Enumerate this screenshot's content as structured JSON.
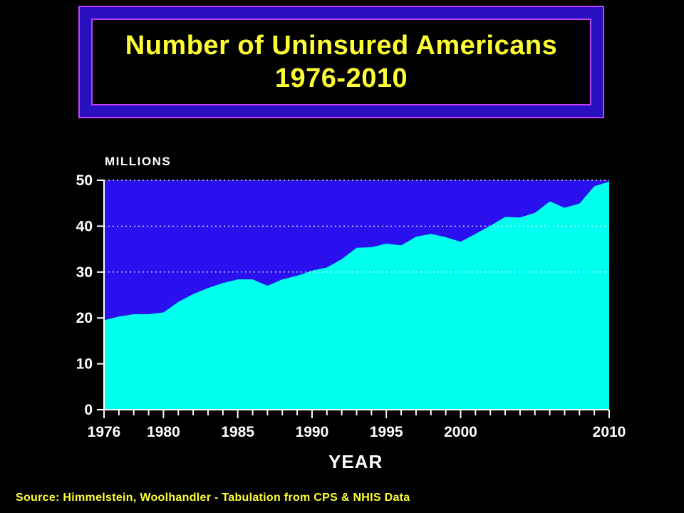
{
  "title": {
    "line1": "Number of Uninsured Americans",
    "line2": "1976-2010"
  },
  "source": "Source: Himmelstein, Woolhandler - Tabulation from CPS & NHIS Data",
  "colors": {
    "background": "#000000",
    "title_text": "#ffff33",
    "title_frame": "#2a0fc0",
    "title_border": "#c040ff",
    "plot_background": "#2a10ee",
    "area_fill": "#00ffee",
    "gridline": "#ffffff",
    "axis_text": "#ffffff"
  },
  "chart_data": {
    "type": "area",
    "title": "Number of Uninsured Americans 1976-2010",
    "xlabel": "YEAR",
    "ylabel": "MILLIONS",
    "xlim": [
      1976,
      2010
    ],
    "ylim": [
      0,
      50
    ],
    "yticks": [
      0,
      10,
      20,
      30,
      40,
      50
    ],
    "xtick_labels": [
      "1976",
      "1980",
      "1985",
      "1990",
      "1995",
      "2000",
      "2010"
    ],
    "grid": "horizontal dotted at 30, 40, 50",
    "x": [
      1976,
      1977,
      1978,
      1979,
      1980,
      1981,
      1982,
      1983,
      1984,
      1985,
      1986,
      1987,
      1988,
      1989,
      1990,
      1991,
      1992,
      1993,
      1994,
      1995,
      1996,
      1997,
      1998,
      1999,
      2000,
      2001,
      2002,
      2003,
      2004,
      2005,
      2006,
      2007,
      2008,
      2009,
      2010
    ],
    "series": [
      {
        "values": [
          19.5,
          20.3,
          20.8,
          20.8,
          21.2,
          23.5,
          25.2,
          26.5,
          27.6,
          28.4,
          28.4,
          27.0,
          28.4,
          29.2,
          30.3,
          31.0,
          32.8,
          35.3,
          35.4,
          36.2,
          35.8,
          37.7,
          38.3,
          37.6,
          36.6,
          38.3,
          40.1,
          42.0,
          41.9,
          42.9,
          45.4,
          44.0,
          44.9,
          48.7,
          49.7
        ]
      }
    ]
  }
}
